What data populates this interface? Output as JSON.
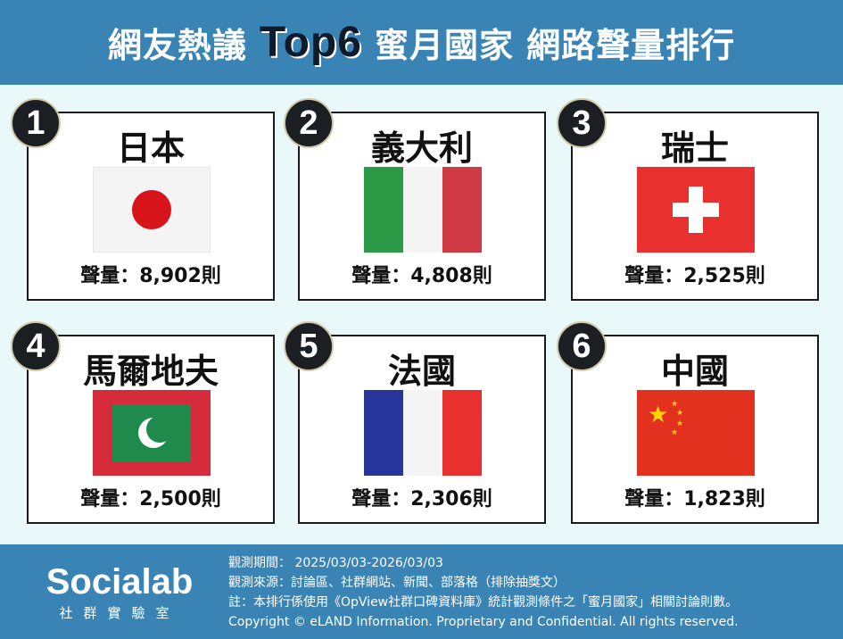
{
  "header": {
    "title_pre": "網友熱議",
    "title_highlight": "Top6",
    "title_post": "蜜月國家 網路聲量排行"
  },
  "colors": {
    "header_bg": "#3a84b5",
    "page_bg": "#e9f8f8"
  },
  "ranking": [
    {
      "rank": "1",
      "country": "日本",
      "volume": "聲量：8,902則",
      "flag": "japan"
    },
    {
      "rank": "2",
      "country": "義大利",
      "volume": "聲量：4,808則",
      "flag": "italy"
    },
    {
      "rank": "3",
      "country": "瑞士",
      "volume": "聲量：2,525則",
      "flag": "switzerland"
    },
    {
      "rank": "4",
      "country": "馬爾地夫",
      "volume": "聲量：2,500則",
      "flag": "maldives"
    },
    {
      "rank": "5",
      "country": "法國",
      "volume": "聲量：2,306則",
      "flag": "france"
    },
    {
      "rank": "6",
      "country": "中國",
      "volume": "聲量：1,823則",
      "flag": "china"
    }
  ],
  "footer": {
    "logo_text": "Socialab",
    "logo_sub": "社群實驗室",
    "period": "觀測期間： 2025/03/03-2026/03/03",
    "source": "觀測來源：討論區、社群網站、新聞、部落格（排除抽獎文）",
    "note": "註：本排行係使用《OpView社群口碑資料庫》統計觀測條件之「蜜月國家」相關討論則數。",
    "copyright": "Copyright © eLAND Information. Proprietary and Confidential. All rights reserved."
  }
}
